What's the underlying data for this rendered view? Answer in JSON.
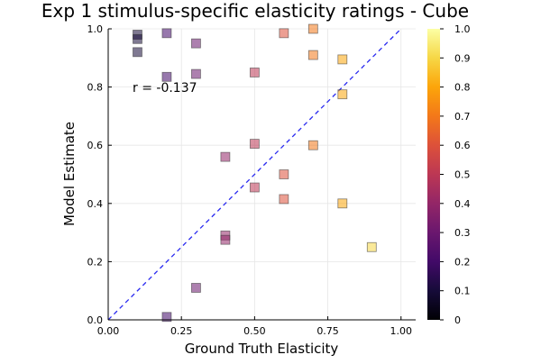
{
  "chart_data": {
    "type": "scatter",
    "title": "Exp 1 stimulus-specific elasticity ratings - Cube",
    "xlabel": "Ground Truth Elasticity",
    "ylabel": "Model Estimate",
    "xlim": [
      0,
      1.05
    ],
    "ylim": [
      0,
      1.0
    ],
    "xticks": [
      0.0,
      0.25,
      0.5,
      0.75,
      1.0
    ],
    "xtick_labels": [
      "0.00",
      "0.25",
      "0.50",
      "0.75",
      "1.00"
    ],
    "yticks": [
      0.0,
      0.2,
      0.4,
      0.6,
      0.8,
      1.0
    ],
    "ytick_labels": [
      "0.0",
      "0.2",
      "0.4",
      "0.6",
      "0.8",
      "1.0"
    ],
    "grid": true,
    "annotation": "r = -0.137",
    "reference_line": {
      "style": "dashed",
      "color": "#2a2af0",
      "from": [
        0,
        0
      ],
      "to": [
        1,
        1
      ]
    },
    "colorbar": {
      "colormap": "inferno",
      "range": [
        0,
        1
      ],
      "ticks": [
        0.0,
        0.1,
        0.2,
        0.3,
        0.4,
        0.5,
        0.6,
        0.7,
        0.8,
        0.9,
        1.0
      ],
      "tick_labels": [
        "0",
        "0.1",
        "0.2",
        "0.3",
        "0.4",
        "0.5",
        "0.6",
        "0.7",
        "0.8",
        "0.9",
        "1.0"
      ]
    },
    "marker": "square",
    "points": [
      {
        "x": 0.1,
        "y": 0.98
      },
      {
        "x": 0.1,
        "y": 0.965
      },
      {
        "x": 0.1,
        "y": 0.92
      },
      {
        "x": 0.2,
        "y": 0.985
      },
      {
        "x": 0.2,
        "y": 0.835
      },
      {
        "x": 0.2,
        "y": 0.01
      },
      {
        "x": 0.3,
        "y": 0.95
      },
      {
        "x": 0.3,
        "y": 0.845
      },
      {
        "x": 0.3,
        "y": 0.11
      },
      {
        "x": 0.4,
        "y": 0.56
      },
      {
        "x": 0.4,
        "y": 0.29
      },
      {
        "x": 0.4,
        "y": 0.275
      },
      {
        "x": 0.5,
        "y": 0.85
      },
      {
        "x": 0.5,
        "y": 0.605
      },
      {
        "x": 0.5,
        "y": 0.455
      },
      {
        "x": 0.6,
        "y": 0.985
      },
      {
        "x": 0.6,
        "y": 0.5
      },
      {
        "x": 0.6,
        "y": 0.415
      },
      {
        "x": 0.7,
        "y": 1.0
      },
      {
        "x": 0.7,
        "y": 0.91
      },
      {
        "x": 0.7,
        "y": 0.6
      },
      {
        "x": 0.8,
        "y": 0.895
      },
      {
        "x": 0.8,
        "y": 0.775
      },
      {
        "x": 0.8,
        "y": 0.4
      },
      {
        "x": 0.9,
        "y": 0.25
      }
    ]
  }
}
